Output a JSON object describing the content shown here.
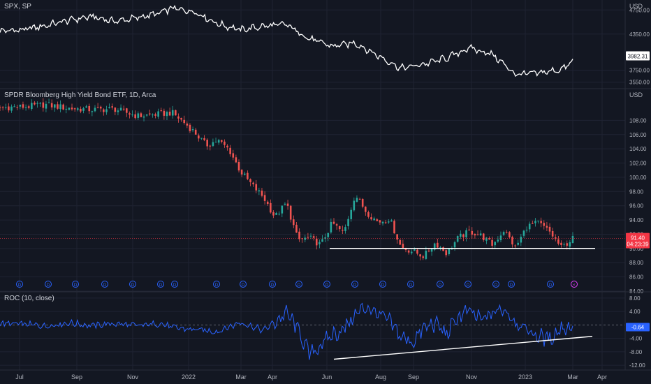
{
  "colors": {
    "background": "#131722",
    "grid": "#1f2333",
    "text": "#b2b5be",
    "up": "#26a69a",
    "down": "#ef5350",
    "roc": "#2962ff",
    "line": "#ffffff",
    "price_tag": "#f23645",
    "roc_tag": "#2962ff"
  },
  "spx": {
    "title": "SPX, SP",
    "unit": "USD",
    "ticks": [
      "4750.00",
      "4350.00",
      "3750.00",
      "3550.00"
    ],
    "last_label": "3982.31"
  },
  "hyg": {
    "title": "SPDR Bloomberg High Yield Bond ETF, 1D, Arca",
    "unit": "USD",
    "ticks": [
      "108.00",
      "106.00",
      "104.00",
      "102.00",
      "100.00",
      "98.00",
      "96.00",
      "94.00",
      "92.00",
      "90.00",
      "88.00",
      "86.00",
      "84.00"
    ],
    "last_price": "91.40",
    "countdown": "04:23:39",
    "dividend_icon": "dividend-icon",
    "earnings_icon": "lightning-icon"
  },
  "roc": {
    "title": "ROC (10, close)",
    "ticks": [
      "8.00",
      "4.00",
      "-4.00",
      "-8.00",
      "-12.00"
    ],
    "last_label": "-0.64"
  },
  "time_axis": [
    "Jul",
    "Sep",
    "Nov",
    "2022",
    "Mar",
    "Apr",
    "Jun",
    "Aug",
    "Sep",
    "Nov",
    "2023",
    "Mar",
    "Apr"
  ],
  "chart_data": [
    {
      "type": "line",
      "series": [
        {
          "name": "SPX, SP",
          "x": [
            0,
            4,
            8,
            12,
            16,
            20,
            24,
            28,
            30,
            34,
            38,
            42,
            46,
            50,
            54,
            58,
            62,
            66,
            70,
            74,
            78,
            82,
            86,
            90,
            94,
            98,
            100
          ],
          "values": [
            4400,
            4420,
            4490,
            4580,
            4640,
            4560,
            4620,
            4700,
            4780,
            4720,
            4520,
            4420,
            4480,
            4510,
            4270,
            4150,
            4200,
            3990,
            3780,
            3850,
            3950,
            4120,
            4010,
            3680,
            3700,
            3760,
            3890
          ]
        }
      ],
      "last": 3982.31,
      "ylim": [
        3500,
        4800
      ]
    },
    {
      "type": "candlestick",
      "series": [
        {
          "name": "SPDR Bloomberg High Yield Bond ETF, 1D, Arca",
          "x": [
            0,
            4,
            8,
            12,
            16,
            20,
            24,
            28,
            30,
            32,
            34,
            36,
            38,
            40,
            42,
            44,
            46,
            48,
            50,
            52,
            54,
            56,
            58,
            60,
            62,
            64,
            66,
            68,
            70,
            72,
            74,
            76,
            78,
            80,
            82,
            84,
            86,
            88,
            90,
            92,
            94,
            96,
            98,
            100
          ],
          "values": [
            109.8,
            109.9,
            110.2,
            109.7,
            109.5,
            109.6,
            108.6,
            108.9,
            109.1,
            107.8,
            106.3,
            104.5,
            105.2,
            103.9,
            100.8,
            98.9,
            97.2,
            94.4,
            96.4,
            91.2,
            91.5,
            90.5,
            93.6,
            92.1,
            97.6,
            95.1,
            93.7,
            94.2,
            90.2,
            89.6,
            88.9,
            90.8,
            89.3,
            91.5,
            92.4,
            91.8,
            90.5,
            92.6,
            90.1,
            93.1,
            93.6,
            92.3,
            90.1,
            91.4
          ]
        }
      ],
      "support_level": 90.0,
      "last": 91.4,
      "ylim": [
        84,
        110
      ]
    },
    {
      "type": "line",
      "series": [
        {
          "name": "ROC (10, close)",
          "x": [
            0,
            4,
            8,
            12,
            16,
            20,
            24,
            28,
            30,
            34,
            38,
            42,
            46,
            50,
            52,
            54,
            56,
            58,
            60,
            62,
            64,
            66,
            68,
            70,
            72,
            74,
            76,
            78,
            80,
            82,
            84,
            86,
            88,
            90,
            92,
            94,
            96,
            98,
            100
          ],
          "values": [
            0.4,
            0.2,
            -0.3,
            0.6,
            -0.2,
            0.4,
            -0.3,
            0.5,
            -0.8,
            -1.4,
            -2.0,
            0.8,
            -1.7,
            3.5,
            -1.2,
            -8.8,
            -6.1,
            -3.0,
            -1.3,
            3.0,
            5.4,
            3.2,
            1.0,
            -3.5,
            -5.2,
            -1.0,
            0.5,
            -2.8,
            2.5,
            4.0,
            1.4,
            3.5,
            4.9,
            1.1,
            -1.5,
            -3.5,
            -4.2,
            -0.8,
            -0.64
          ]
        }
      ],
      "zero_line": 0,
      "trendline": true,
      "last": -0.64,
      "ylim": [
        -13,
        9
      ]
    }
  ]
}
